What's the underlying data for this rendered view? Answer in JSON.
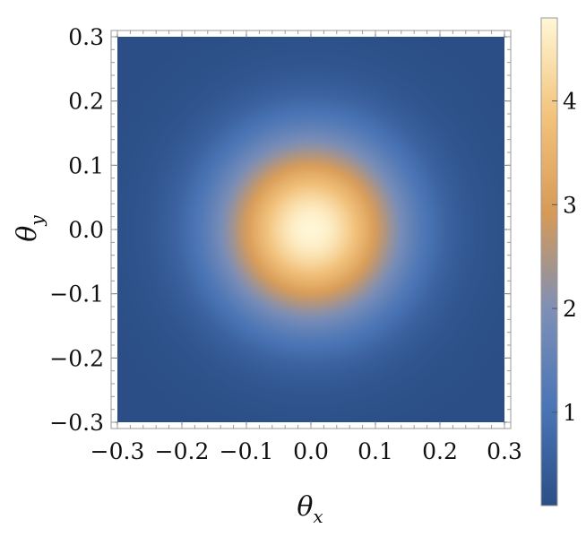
{
  "chart_data": {
    "type": "heatmap",
    "title": "",
    "xlabel": {
      "symbol": "θ",
      "subscript": "x"
    },
    "ylabel": {
      "symbol": "θ",
      "subscript": "y"
    },
    "xlim": [
      -0.3,
      0.3
    ],
    "ylim": [
      -0.3,
      0.3
    ],
    "x_ticks": [
      -0.3,
      -0.2,
      -0.1,
      0.0,
      0.1,
      0.2,
      0.3
    ],
    "y_ticks": [
      -0.3,
      -0.2,
      -0.1,
      0.0,
      0.1,
      0.2,
      0.3
    ],
    "x_tick_labels": [
      "−0.3",
      "−0.2",
      "−0.1",
      "0.0",
      "0.1",
      "0.2",
      "0.3"
    ],
    "y_tick_labels": [
      "−0.3",
      "−0.2",
      "−0.1",
      "0.0",
      "0.1",
      "0.2",
      "0.3"
    ],
    "distribution": {
      "shape": "circular-gaussian",
      "center": [
        0.0,
        0.0
      ],
      "peak_value": 4.8,
      "sigma": 0.1,
      "background_value": 0.1
    },
    "colorbar": {
      "range": [
        0.1,
        4.8
      ],
      "ticks": [
        1,
        2,
        3,
        4
      ],
      "tick_labels": [
        "1",
        "2",
        "3",
        "4"
      ],
      "colormap": [
        "#2b4e86",
        "#4a75b6",
        "#7d8fb7",
        "#d69a57",
        "#f3c37c",
        "#fff7d6"
      ]
    },
    "grid": false,
    "legend": "none"
  }
}
